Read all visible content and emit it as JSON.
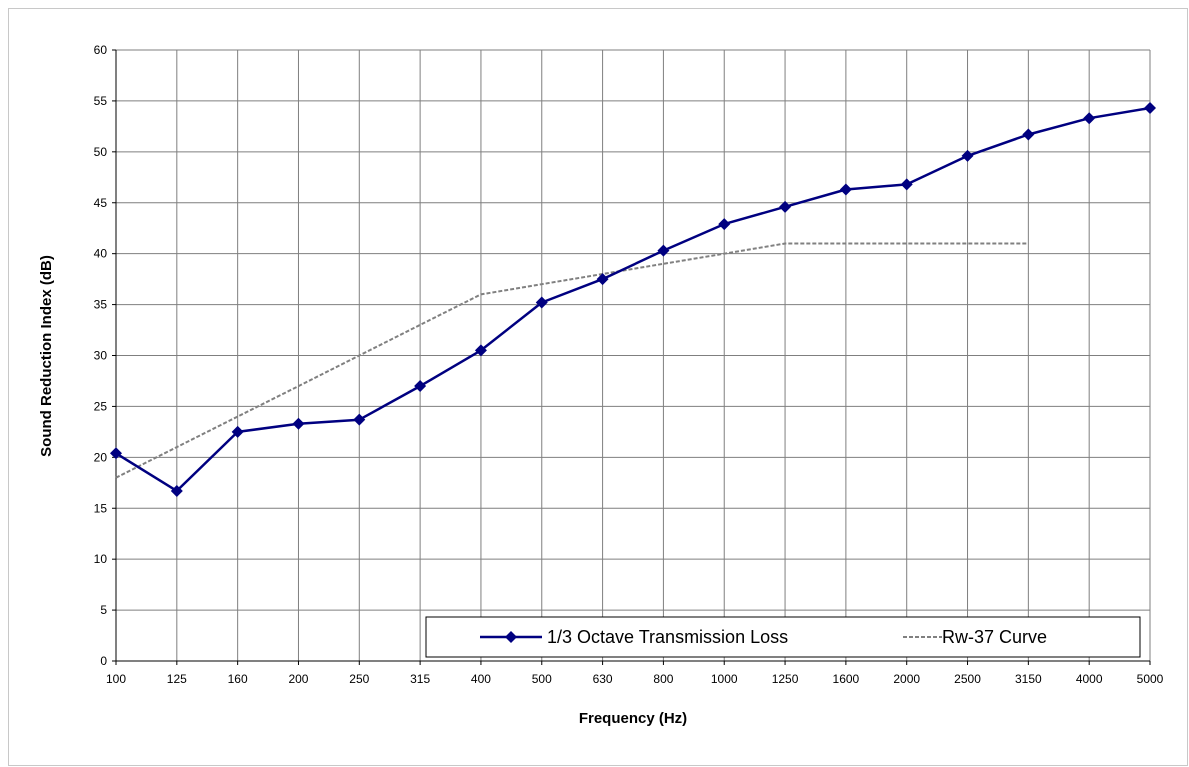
{
  "chart_data": {
    "type": "line",
    "title": "",
    "xlabel": "Frequency (Hz)",
    "ylabel": "Sound Reduction Index (dB)",
    "categories": [
      "100",
      "125",
      "160",
      "200",
      "250",
      "315",
      "400",
      "500",
      "630",
      "800",
      "1000",
      "1250",
      "1600",
      "2000",
      "2500",
      "3150",
      "4000",
      "5000"
    ],
    "ylim": [
      0,
      60
    ],
    "yticks": [
      0,
      5,
      10,
      15,
      20,
      25,
      30,
      35,
      40,
      45,
      50,
      55,
      60
    ],
    "grid": true,
    "legend_position": "bottom-right",
    "series": [
      {
        "name": "1/3 Octave Transmission Loss",
        "color": "#000080",
        "style": "solid",
        "marker": "diamond",
        "values": [
          20.4,
          16.7,
          22.5,
          23.3,
          23.7,
          27.0,
          30.5,
          35.2,
          37.5,
          40.3,
          42.9,
          44.6,
          46.3,
          46.8,
          49.6,
          51.7,
          53.3,
          54.3
        ]
      },
      {
        "name": "Rw-37 Curve",
        "color": "#808080",
        "style": "dashed",
        "marker": "none",
        "values": [
          18,
          21,
          24,
          27,
          30,
          33,
          36,
          37,
          38,
          39,
          40,
          41,
          41,
          41,
          41,
          41,
          null,
          null
        ]
      }
    ]
  }
}
